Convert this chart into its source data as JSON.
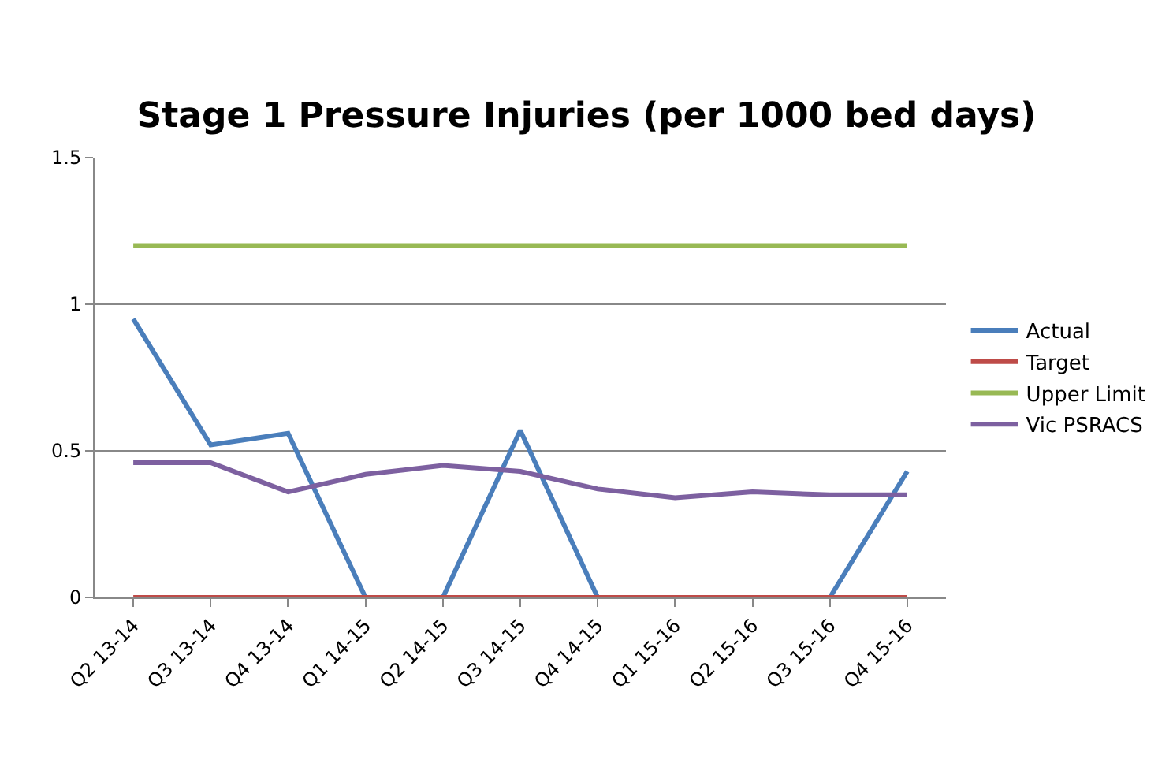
{
  "chart_data": {
    "type": "line",
    "title": "Stage 1 Pressure Injuries (per 1000 bed days)",
    "categories": [
      "Q2 13-14",
      "Q3 13-14",
      "Q4 13-14",
      "Q1 14-15",
      "Q2 14-15",
      "Q3 14-15",
      "Q4 14-15",
      "Q1 15-16",
      "Q2 15-16",
      "Q3 15-16",
      "Q4 15-16"
    ],
    "series": [
      {
        "name": "Actual",
        "color": "#4a7ebb",
        "values": [
          0.95,
          0.52,
          0.56,
          0,
          0,
          0.57,
          0,
          0,
          0,
          0,
          0.43
        ]
      },
      {
        "name": "Target",
        "color": "#be4b48",
        "values": [
          0,
          0,
          0,
          0,
          0,
          0,
          0,
          0,
          0,
          0,
          0
        ]
      },
      {
        "name": "Upper Limit",
        "color": "#98b954",
        "values": [
          1.2,
          1.2,
          1.2,
          1.2,
          1.2,
          1.2,
          1.2,
          1.2,
          1.2,
          1.2,
          1.2
        ]
      },
      {
        "name": "Vic PSRACS",
        "color": "#7d60a0",
        "values": [
          0.46,
          0.46,
          0.36,
          0.42,
          0.45,
          0.43,
          0.37,
          0.34,
          0.36,
          0.35,
          0.35
        ]
      }
    ],
    "ylim": [
      0,
      1.5
    ],
    "yticks": [
      0,
      0.5,
      1,
      1.5
    ],
    "grid": "y",
    "legend": "right",
    "marker": "none",
    "line_style": "solid"
  }
}
